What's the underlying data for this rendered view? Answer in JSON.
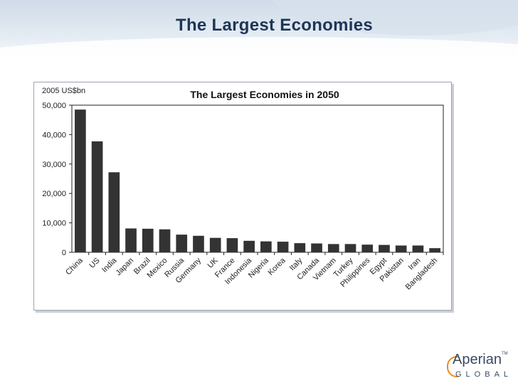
{
  "slide": {
    "title": "The Largest Economies"
  },
  "logo": {
    "name": "Aperian",
    "tm": "TM",
    "sub": "GLOBAL"
  },
  "chart_data": {
    "type": "bar",
    "title": "The Largest Economies in 2050",
    "unit_label": "2005 US$bn",
    "categories": [
      "China",
      "US",
      "India",
      "Japan",
      "Brazil",
      "Mexico",
      "Russia",
      "Germany",
      "UK",
      "France",
      "Indonesia",
      "Nigeria",
      "Korea",
      "Italy",
      "Canada",
      "Vietnam",
      "Turkey",
      "Philippines",
      "Egypt",
      "Pakistan",
      "Iran",
      "Bangladesh"
    ],
    "values": [
      48500,
      37700,
      27200,
      8100,
      8000,
      7800,
      6000,
      5600,
      4900,
      4800,
      3900,
      3700,
      3600,
      3100,
      3000,
      2800,
      2800,
      2600,
      2500,
      2300,
      2300,
      1400
    ],
    "yticks": [
      0,
      10000,
      20000,
      30000,
      40000,
      50000
    ],
    "ytick_labels": [
      "0",
      "10,000",
      "20,000",
      "30,000",
      "40,000",
      "50,000"
    ],
    "ylim": [
      0,
      50000
    ],
    "bar_color": "#333333",
    "grid": false,
    "legend": "none"
  }
}
